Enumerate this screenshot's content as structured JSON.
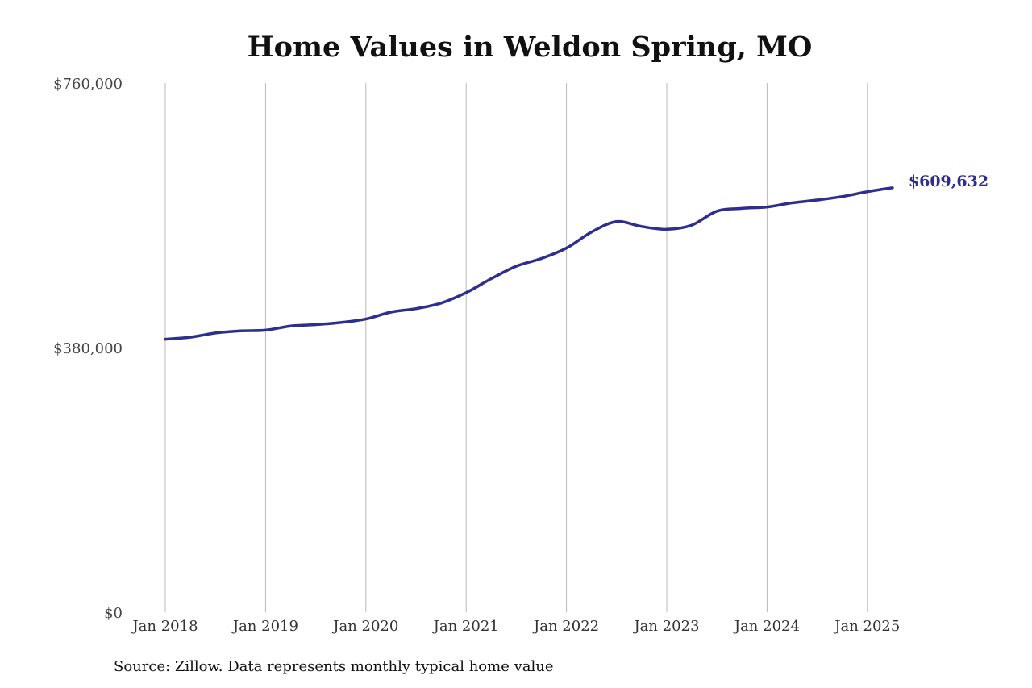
{
  "chart_data": {
    "type": "line",
    "title": "Home Values in Weldon Spring, MO",
    "xlabel": "",
    "ylabel": "",
    "ylim": [
      0,
      760000
    ],
    "y_ticks": [
      0,
      380000,
      760000
    ],
    "y_tick_labels": [
      "$0",
      "$380,000",
      "$760,000"
    ],
    "x_ticks": [
      "2018-01",
      "2019-01",
      "2020-01",
      "2021-01",
      "2022-01",
      "2023-01",
      "2024-01",
      "2025-01"
    ],
    "x_tick_labels": [
      "Jan 2018",
      "Jan 2019",
      "Jan 2020",
      "Jan 2021",
      "Jan 2022",
      "Jan 2023",
      "Jan 2024",
      "Jan 2025"
    ],
    "grid": "vertical",
    "color": "#2e2e8f",
    "end_label": "$609,632",
    "series": [
      {
        "x": [
          "2018-01",
          "2018-04",
          "2018-07",
          "2018-10",
          "2019-01",
          "2019-04",
          "2019-07",
          "2019-10",
          "2020-01",
          "2020-04",
          "2020-07",
          "2020-10",
          "2021-01",
          "2021-04",
          "2021-07",
          "2021-10",
          "2022-01",
          "2022-04",
          "2022-07",
          "2022-10",
          "2023-01",
          "2023-04",
          "2023-07",
          "2023-10",
          "2024-01",
          "2024-04",
          "2024-07",
          "2024-10",
          "2025-01",
          "2025-04"
        ],
        "values": [
          392000,
          395000,
          401000,
          404000,
          405000,
          411000,
          413000,
          416000,
          421000,
          431000,
          436000,
          444000,
          459000,
          479000,
          497000,
          508000,
          523000,
          546000,
          561000,
          554000,
          550000,
          556000,
          576000,
          580000,
          582000,
          588000,
          592000,
          597000,
          604000,
          609632
        ]
      }
    ]
  },
  "source": "Source: Zillow. Data represents monthly typical home value"
}
